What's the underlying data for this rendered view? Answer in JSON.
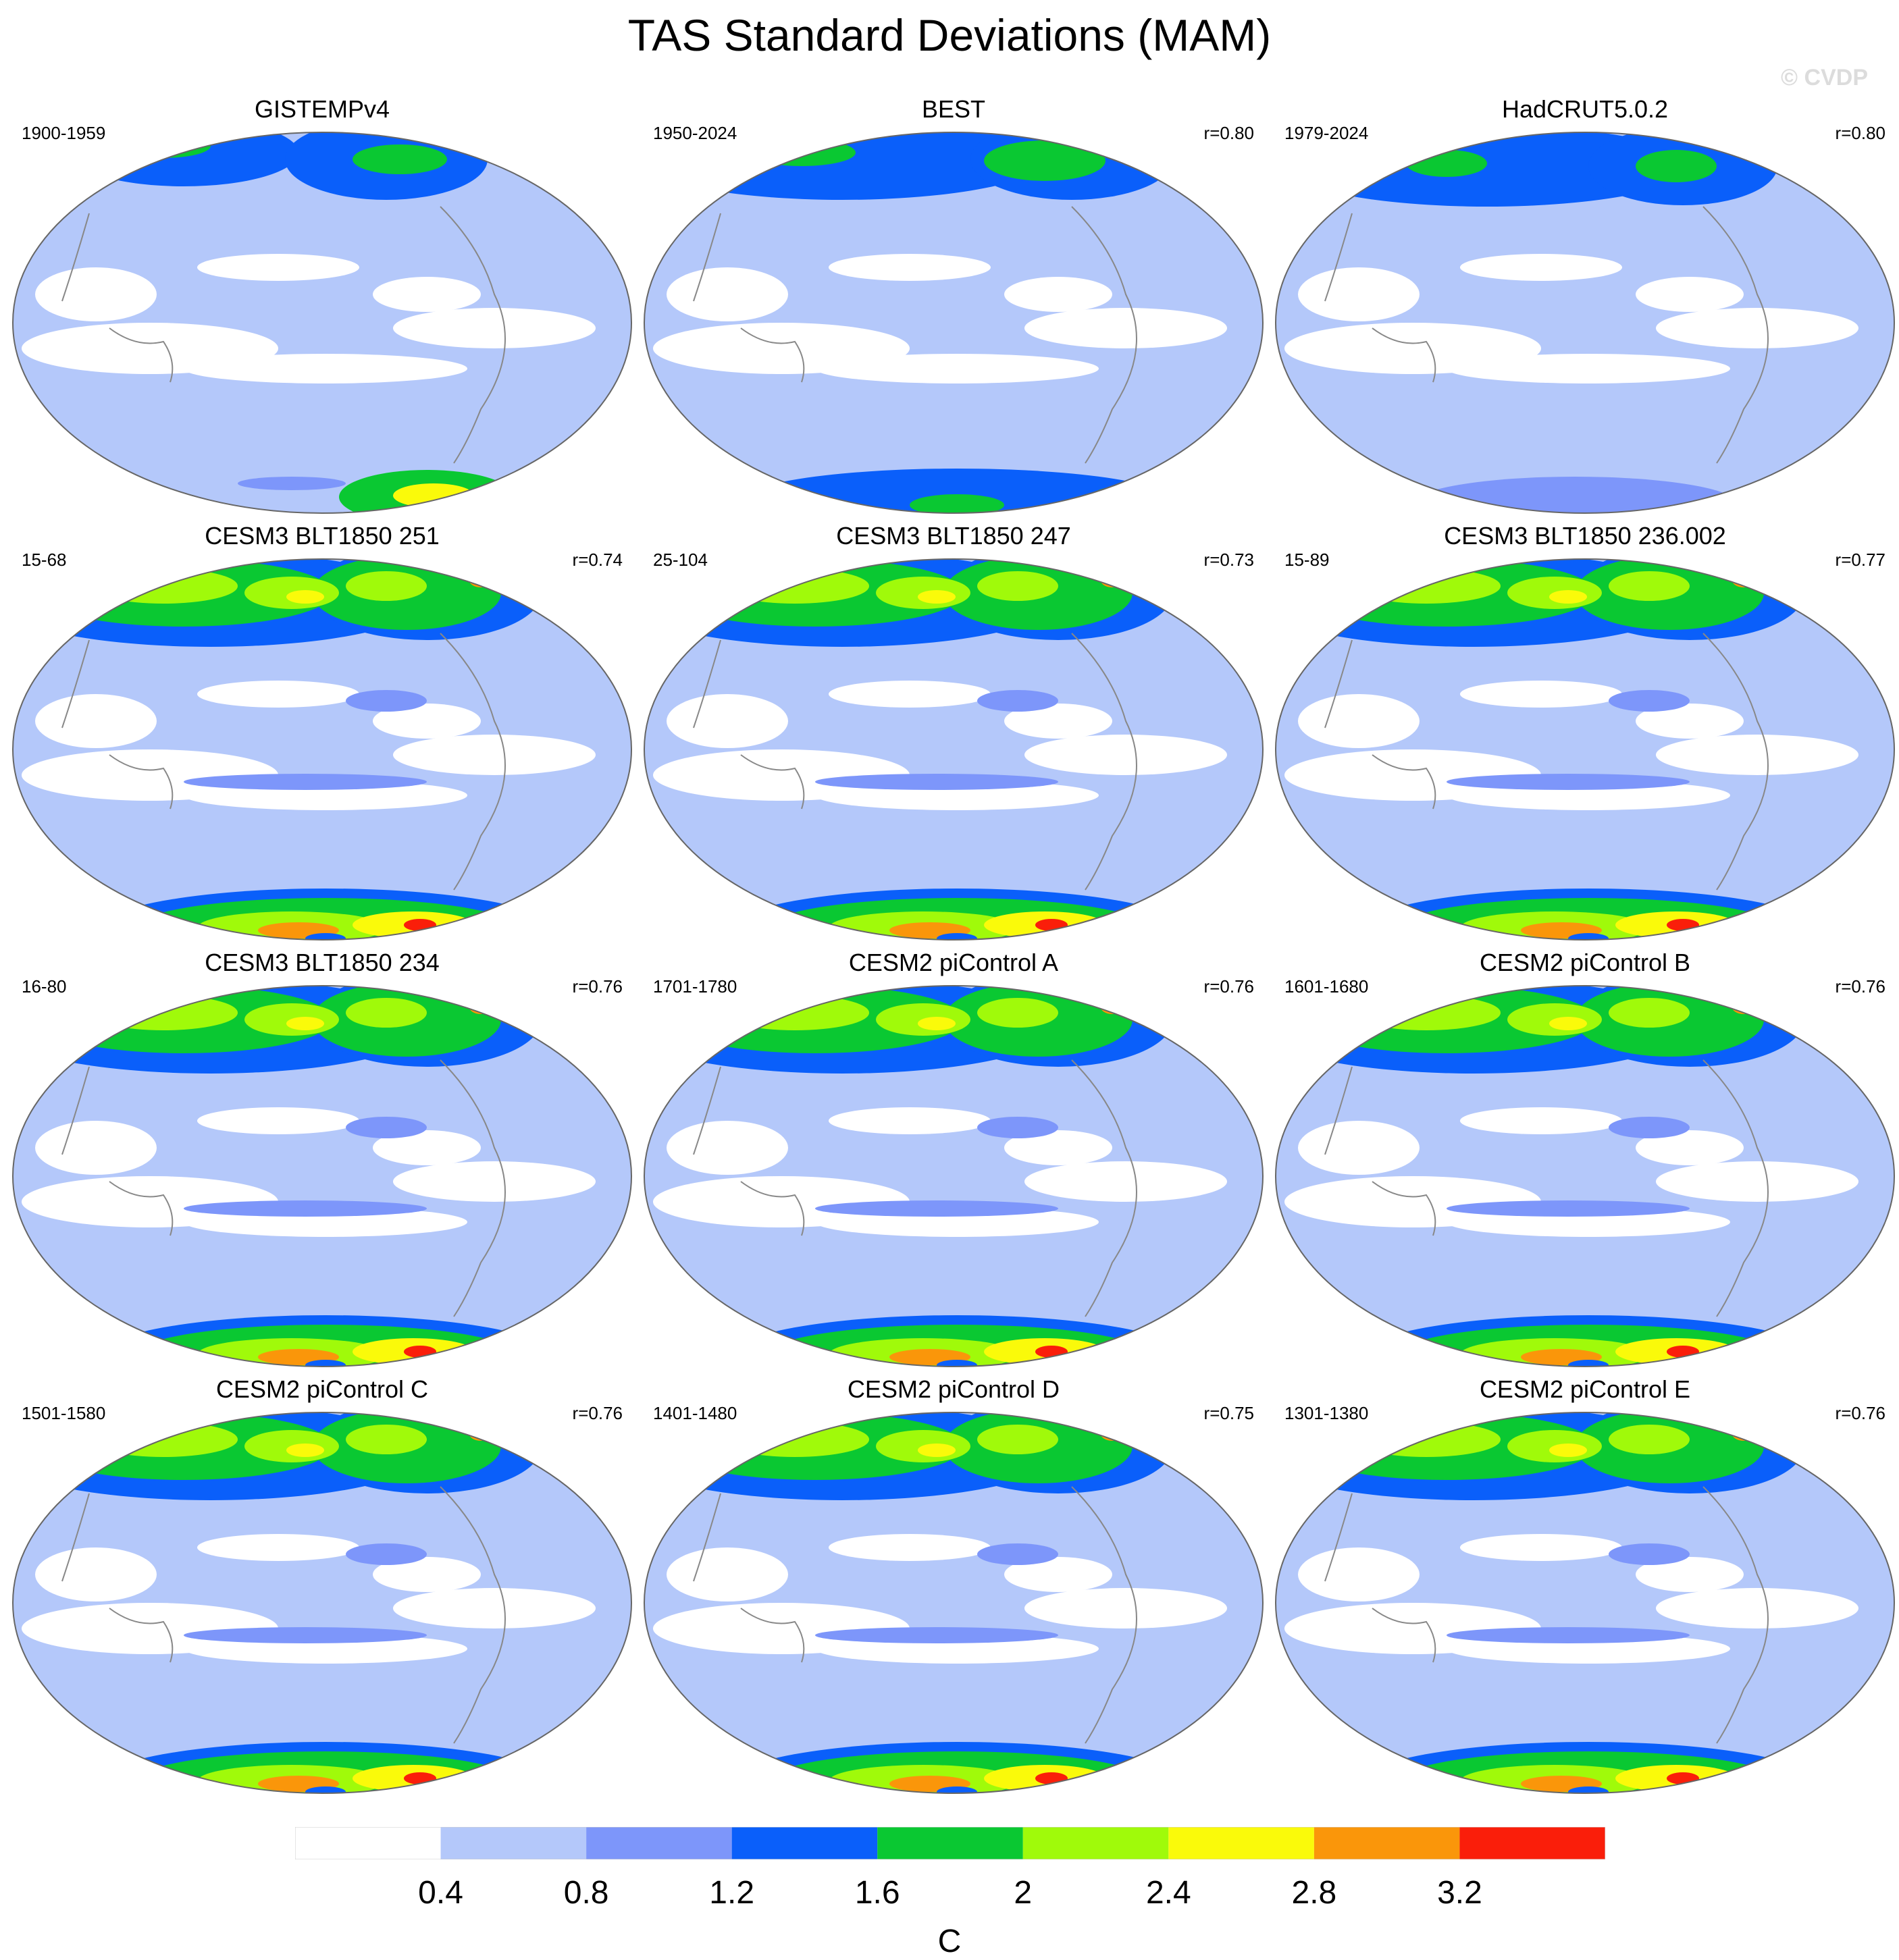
{
  "title": "TAS Standard Deviations (MAM)",
  "watermark": "© CVDP",
  "panels": [
    {
      "title": "GISTEMPv4",
      "years": "1900-1959",
      "r": "",
      "kind": "obs1"
    },
    {
      "title": "BEST",
      "years": "1950-2024",
      "r": "r=0.80",
      "kind": "obs2"
    },
    {
      "title": "HadCRUT5.0.2",
      "years": "1979-2024",
      "r": "r=0.80",
      "kind": "obs3"
    },
    {
      "title": "CESM3 BLT1850 251",
      "years": "15-68",
      "r": "r=0.74",
      "kind": "model"
    },
    {
      "title": "CESM3 BLT1850 247",
      "years": "25-104",
      "r": "r=0.73",
      "kind": "model"
    },
    {
      "title": "CESM3 BLT1850 236.002",
      "years": "15-89",
      "r": "r=0.77",
      "kind": "model"
    },
    {
      "title": "CESM3 BLT1850 234",
      "years": "16-80",
      "r": "r=0.76",
      "kind": "model"
    },
    {
      "title": "CESM2 piControl A",
      "years": "1701-1780",
      "r": "r=0.76",
      "kind": "model"
    },
    {
      "title": "CESM2 piControl B",
      "years": "1601-1680",
      "r": "r=0.76",
      "kind": "model"
    },
    {
      "title": "CESM2 piControl C",
      "years": "1501-1580",
      "r": "r=0.76",
      "kind": "model"
    },
    {
      "title": "CESM2 piControl D",
      "years": "1401-1480",
      "r": "r=0.75",
      "kind": "model"
    },
    {
      "title": "CESM2 piControl E",
      "years": "1301-1380",
      "r": "r=0.76",
      "kind": "model"
    }
  ],
  "colorbar": {
    "colors": [
      "#ffffff",
      "#b4c8fa",
      "#7d96fa",
      "#0a5ffa",
      "#0ac832",
      "#a0fa0a",
      "#fafa0a",
      "#fa960a",
      "#fa1e0a"
    ],
    "ticks": [
      "0.4",
      "0.8",
      "1.2",
      "1.6",
      "2",
      "2.4",
      "2.8",
      "3.2"
    ],
    "unit": "C"
  }
}
